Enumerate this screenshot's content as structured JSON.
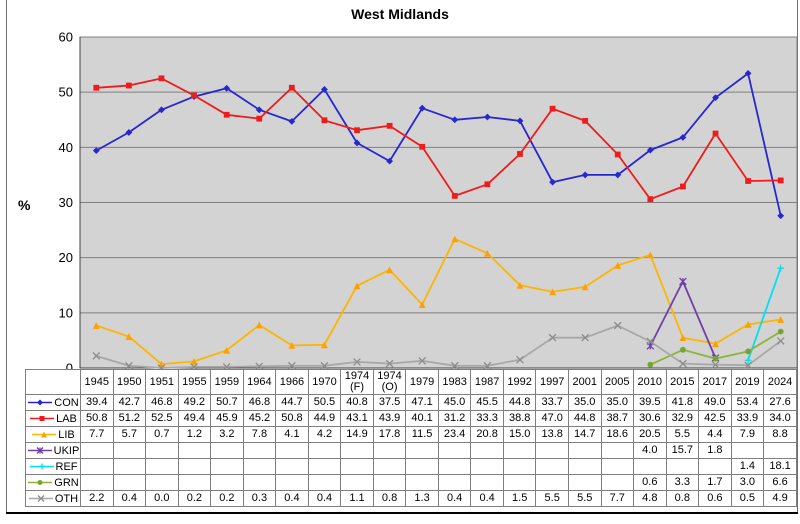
{
  "frame": {
    "border_color": "#6f6f6f",
    "bottom_bar_color": "#000000"
  },
  "chart_data": {
    "type": "line",
    "title": "West Midlands",
    "xlabel": "",
    "ylabel": "%",
    "ylim": [
      0,
      60
    ],
    "ytick_interval": 10,
    "grid": true,
    "plot_bg": "#d3d3d3",
    "gridline_color": "#7f7f7f",
    "axis_color": "#404040",
    "legend_position": "table-left",
    "categories": [
      "1945",
      "1950",
      "1951",
      "1955",
      "1959",
      "1964",
      "1966",
      "1970",
      "1974 (F)",
      "1974 (O)",
      "1979",
      "1983",
      "1987",
      "1992",
      "1997",
      "2001",
      "2005",
      "2010",
      "2015",
      "2017",
      "2019",
      "2024"
    ],
    "series": [
      {
        "name": "CON",
        "color": "#2727cf",
        "marker": "diamond",
        "values": [
          39.4,
          42.7,
          46.8,
          49.2,
          50.7,
          46.8,
          44.7,
          50.5,
          40.8,
          37.5,
          47.1,
          45.0,
          45.5,
          44.8,
          33.7,
          35.0,
          35.0,
          39.5,
          41.8,
          49.0,
          53.4,
          27.6
        ]
      },
      {
        "name": "LAB",
        "color": "#ee1c1c",
        "marker": "square",
        "values": [
          50.8,
          51.2,
          52.5,
          49.4,
          45.9,
          45.2,
          50.8,
          44.9,
          43.1,
          43.9,
          40.1,
          31.2,
          33.3,
          38.8,
          47.0,
          44.8,
          38.7,
          30.6,
          32.9,
          42.5,
          33.9,
          34.0
        ]
      },
      {
        "name": "LIB",
        "color": "#ffb400",
        "marker": "triangle",
        "marker_color": "#ffa000",
        "values": [
          7.7,
          5.7,
          0.7,
          1.2,
          3.2,
          7.8,
          4.1,
          4.2,
          14.9,
          17.8,
          11.5,
          23.4,
          20.8,
          15.0,
          13.8,
          14.7,
          18.6,
          20.5,
          5.5,
          4.4,
          7.9,
          8.8
        ]
      },
      {
        "name": "UKIP",
        "color": "#7040a8",
        "marker": "star",
        "values": [
          null,
          null,
          null,
          null,
          null,
          null,
          null,
          null,
          null,
          null,
          null,
          null,
          null,
          null,
          null,
          null,
          null,
          4.0,
          15.7,
          1.8,
          null,
          null
        ]
      },
      {
        "name": "REF",
        "color": "#00e0f0",
        "marker": "plus",
        "values": [
          null,
          null,
          null,
          null,
          null,
          null,
          null,
          null,
          null,
          null,
          null,
          null,
          null,
          null,
          null,
          null,
          null,
          null,
          null,
          null,
          1.4,
          18.1
        ]
      },
      {
        "name": "GRN",
        "color": "#8db33a",
        "marker": "circle",
        "marker_color": "#76a432",
        "values": [
          null,
          null,
          null,
          null,
          null,
          null,
          null,
          null,
          null,
          null,
          null,
          null,
          null,
          null,
          null,
          null,
          null,
          0.6,
          3.3,
          1.7,
          3.0,
          6.6
        ]
      },
      {
        "name": "OTH",
        "color": "#a8a8a8",
        "marker": "x",
        "marker_color": "#8c8c8c",
        "values": [
          2.2,
          0.4,
          0.0,
          0.2,
          0.2,
          0.3,
          0.4,
          0.4,
          1.1,
          0.8,
          1.3,
          0.4,
          0.4,
          1.5,
          5.5,
          5.5,
          7.7,
          4.8,
          0.8,
          0.6,
          0.5,
          4.9
        ]
      }
    ]
  }
}
